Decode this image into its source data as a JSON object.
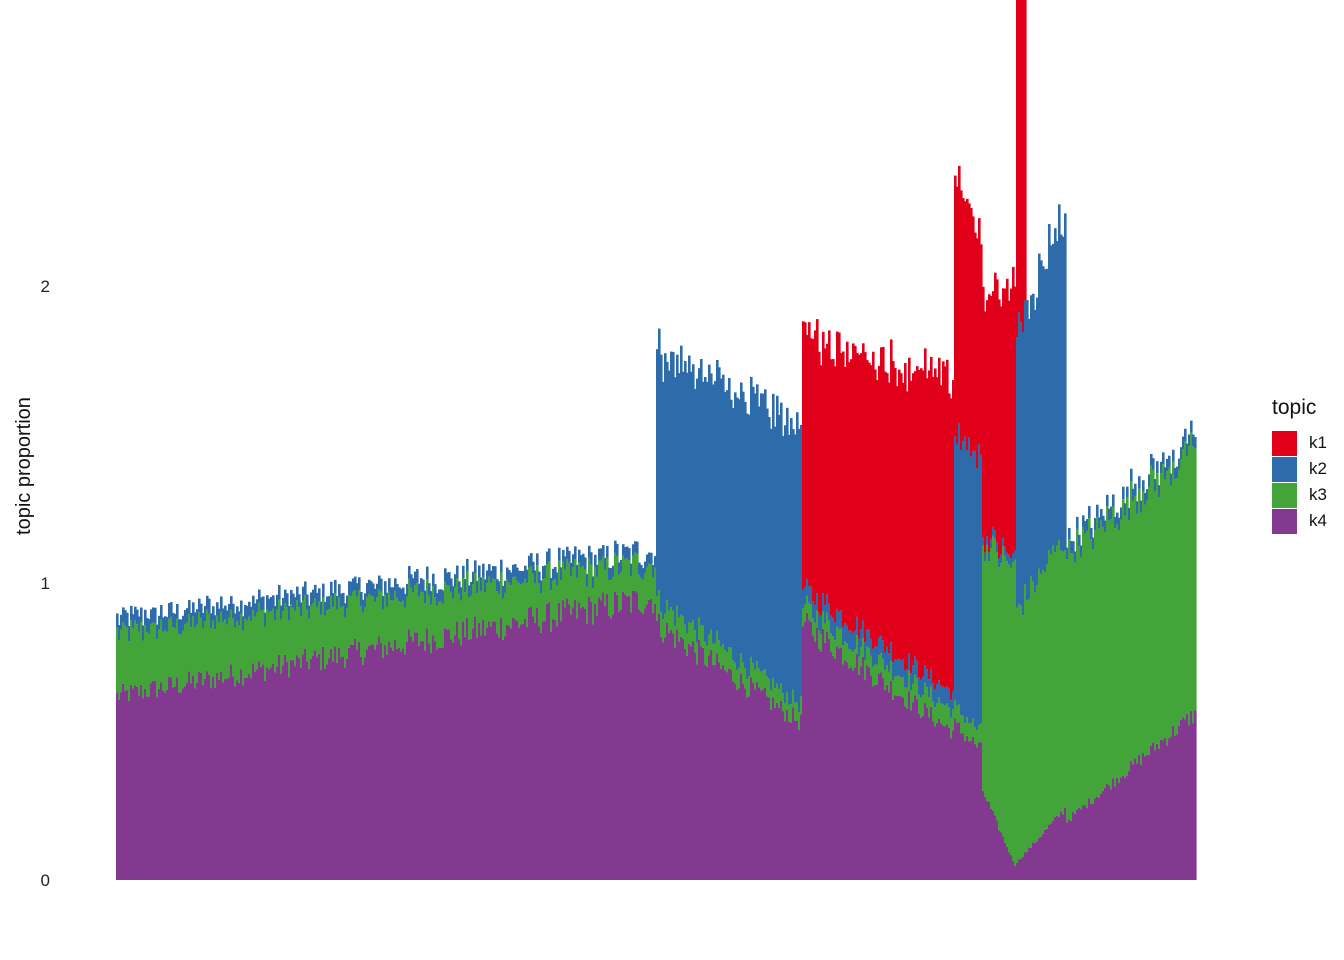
{
  "chart_data": {
    "type": "bar",
    "stacked": true,
    "ylabel": "topic proportion",
    "ylim": [
      0,
      2.85
    ],
    "yticks": [
      "0",
      "1",
      "2"
    ],
    "grid": false,
    "legend": {
      "title": "topic",
      "position": "right",
      "items": [
        "k1",
        "k2",
        "k3",
        "k4"
      ]
    },
    "colors": {
      "k1": "#E0001A",
      "k2": "#2E6BAB",
      "k3": "#43A43A",
      "k4": "#833990"
    },
    "n_bars": 540,
    "series": [
      {
        "name": "k4",
        "segments": [
          {
            "n": 270,
            "from": 0.62,
            "to": 0.95
          },
          {
            "n": 73,
            "from": 0.86,
            "to": 0.53
          },
          {
            "n": 76,
            "from": 0.86,
            "to": 0.5
          },
          {
            "n": 14,
            "from": 0.52,
            "to": 0.44
          },
          {
            "n": 17,
            "from": 0.3,
            "to": 0.05
          },
          {
            "n": 25,
            "from": 0.06,
            "to": 0.24
          },
          {
            "n": 65,
            "from": 0.2,
            "to": 0.56
          }
        ]
      },
      {
        "name": "k3",
        "segments": [
          {
            "n": 270,
            "from": 0.21,
            "to": 0.12
          },
          {
            "n": 73,
            "from": 0.08,
            "to": 0.06
          },
          {
            "n": 76,
            "from": 0.06,
            "to": 0.07
          },
          {
            "n": 14,
            "from": 0.06,
            "to": 0.06
          },
          {
            "n": 17,
            "from": 0.83,
            "to": 1.0
          },
          {
            "n": 25,
            "from": 0.85,
            "to": 0.91
          },
          {
            "n": 65,
            "from": 0.9,
            "to": 0.89
          }
        ]
      },
      {
        "name": "k2",
        "segments": [
          {
            "n": 270,
            "from": 0.05,
            "to": 0.04
          },
          {
            "n": 73,
            "from": 0.84,
            "to": 0.93
          },
          {
            "n": 76,
            "from": 0.06,
            "to": 0.06
          },
          {
            "n": 14,
            "from": 0.92,
            "to": 0.91
          },
          {
            "n": 17,
            "from": 0.03,
            "to": 0.03
          },
          {
            "n": 25,
            "from": 0.95,
            "to": 1.1
          },
          {
            "n": 65,
            "from": 0.04,
            "to": 0.04
          }
        ]
      },
      {
        "name": "k1",
        "segments": [
          {
            "n": 270,
            "from": 0.0,
            "to": 0.0
          },
          {
            "n": 73,
            "from": 0.0,
            "to": 0.0
          },
          {
            "n": 76,
            "from": 0.86,
            "to": 1.05
          },
          {
            "n": 14,
            "from": 0.89,
            "to": 0.73
          },
          {
            "n": 17,
            "from": 0.8,
            "to": 0.93
          },
          {
            "n": 25,
            "from": 0.0,
            "to": 0.0
          },
          {
            "n": 65,
            "from": 0.0,
            "to": 0.0
          }
        ]
      }
    ],
    "spikes": [
      {
        "start": 450,
        "n": 5,
        "k1": [
          1.95,
          1.98,
          1.97,
          1.95,
          1.85
        ]
      }
    ]
  }
}
